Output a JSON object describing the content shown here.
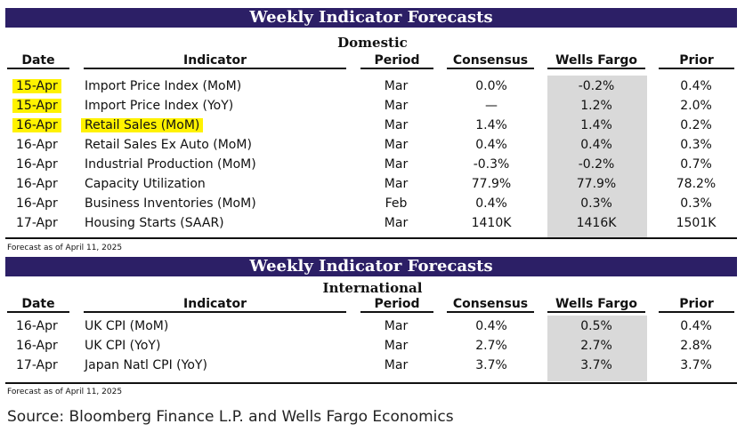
{
  "domestic": {
    "banner": "Weekly Indicator Forecasts",
    "subtitle": "Domestic",
    "columns": [
      "Date",
      "Indicator",
      "Period",
      "Consensus",
      "Wells Fargo",
      "Prior"
    ],
    "rows": [
      {
        "date": "15-Apr",
        "indicator": "Import Price Index (MoM)",
        "period": "Mar",
        "consensus": "0.0%",
        "wells_fargo": "-0.2%",
        "prior": "0.4%",
        "highlight": true
      },
      {
        "date": "15-Apr",
        "indicator": "Import Price Index (YoY)",
        "period": "Mar",
        "consensus": "—",
        "wells_fargo": "1.2%",
        "prior": "2.0%",
        "highlight": true
      },
      {
        "date": "16-Apr",
        "indicator": "Retail Sales (MoM)",
        "period": "Mar",
        "consensus": "1.4%",
        "wells_fargo": "1.4%",
        "prior": "0.2%",
        "highlight": true
      },
      {
        "date": "16-Apr",
        "indicator": "Retail Sales Ex Auto (MoM)",
        "period": "Mar",
        "consensus": "0.4%",
        "wells_fargo": "0.4%",
        "prior": "0.3%",
        "highlight": false
      },
      {
        "date": "16-Apr",
        "indicator": "Industrial Production (MoM)",
        "period": "Mar",
        "consensus": "-0.3%",
        "wells_fargo": "-0.2%",
        "prior": "0.7%",
        "highlight": false
      },
      {
        "date": "16-Apr",
        "indicator": "Capacity Utilization",
        "period": "Mar",
        "consensus": "77.9%",
        "wells_fargo": "77.9%",
        "prior": "78.2%",
        "highlight": false
      },
      {
        "date": "16-Apr",
        "indicator": "Business Inventories (MoM)",
        "period": "Feb",
        "consensus": "0.4%",
        "wells_fargo": "0.3%",
        "prior": "0.3%",
        "highlight": false
      },
      {
        "date": "17-Apr",
        "indicator": "Housing Starts (SAAR)",
        "period": "Mar",
        "consensus": "1410K",
        "wells_fargo": "1416K",
        "prior": "1501K",
        "highlight": false
      }
    ],
    "note": "Forecast as of April 11, 2025"
  },
  "international": {
    "banner": "Weekly Indicator Forecasts",
    "subtitle": "International",
    "columns": [
      "Date",
      "Indicator",
      "Period",
      "Consensus",
      "Wells Fargo",
      "Prior"
    ],
    "rows": [
      {
        "date": "16-Apr",
        "indicator": "UK CPI (MoM)",
        "period": "Mar",
        "consensus": "0.4%",
        "wells_fargo": "0.5%",
        "prior": "0.4%",
        "highlight": false
      },
      {
        "date": "16-Apr",
        "indicator": "UK CPI (YoY)",
        "period": "Mar",
        "consensus": "2.7%",
        "wells_fargo": "2.7%",
        "prior": "2.8%",
        "highlight": false
      },
      {
        "date": "17-Apr",
        "indicator": "Japan Natl CPI (YoY)",
        "period": "Mar",
        "consensus": "3.7%",
        "wells_fargo": "3.7%",
        "prior": "3.7%",
        "highlight": false
      }
    ],
    "note": "Forecast as of April 11, 2025"
  },
  "source": "Source: Bloomberg Finance L.P. and Wells Fargo Economics",
  "colors": {
    "banner": "#2c1f66",
    "wells_fargo_column": "#d9d9d9",
    "highlight": "#fff200"
  }
}
